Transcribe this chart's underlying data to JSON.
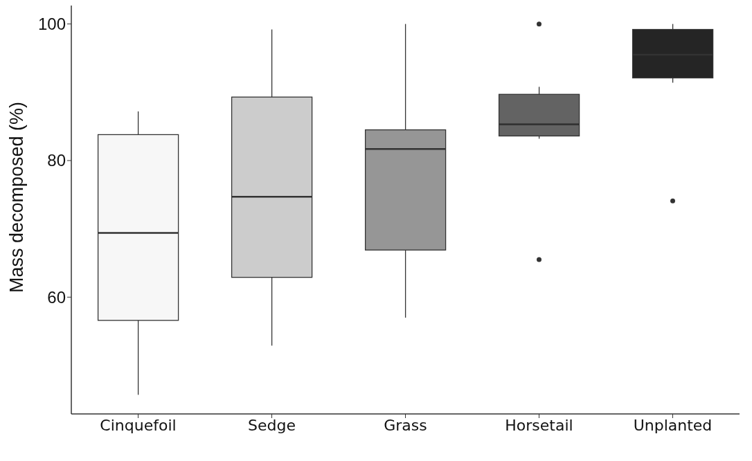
{
  "chart_data": {
    "type": "box",
    "ylabel": "Mass decomposed (%)",
    "categories": [
      "Cinquefoil",
      "Sedge",
      "Grass",
      "Horsetail",
      "Unplanted"
    ],
    "colors": [
      "#f7f7f7",
      "#cccccc",
      "#969696",
      "#636363",
      "#252525"
    ],
    "boxes": [
      {
        "low": 45.7,
        "q1": 56.6,
        "median": 69.4,
        "q3": 83.8,
        "high": 87.2
      },
      {
        "low": 52.9,
        "q1": 62.9,
        "median": 74.7,
        "q3": 89.3,
        "high": 99.2
      },
      {
        "low": 57.0,
        "q1": 66.9,
        "median": 81.7,
        "q3": 84.5,
        "high": 100
      },
      {
        "low": 83.2,
        "q1": 83.6,
        "median": 85.3,
        "q3": 89.7,
        "high": 90.8,
        "outliers": [
          100,
          65.5
        ]
      },
      {
        "low": 91.4,
        "q1": 92.1,
        "median": 95.5,
        "q3": 99.2,
        "high": 100,
        "outliers": [
          74.1
        ]
      }
    ],
    "ylim": [
      42.9,
      102.7
    ],
    "yticks": [
      60,
      80,
      100
    ],
    "grid": false,
    "legend": false
  }
}
